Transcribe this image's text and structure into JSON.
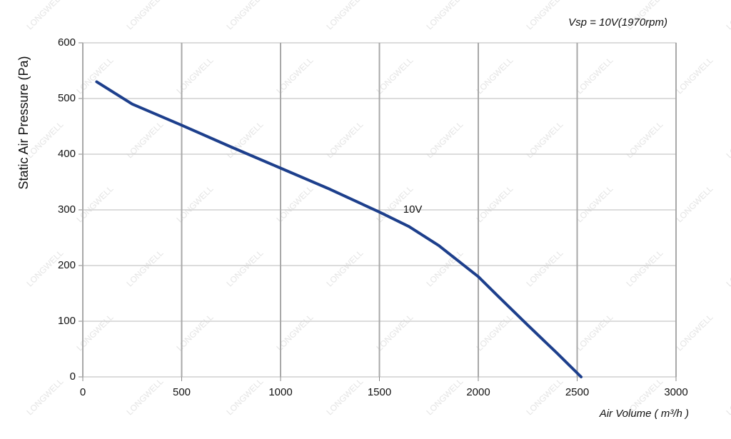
{
  "chart_data": {
    "type": "line",
    "annotation_top": "Vsp = 10V(1970rpm)",
    "watermark": "LONGWELL",
    "xlabel": "Air Volume ( m³/h )",
    "ylabel": "Static Air Pressure  (Pa)",
    "x": [
      70,
      250,
      500,
      750,
      1000,
      1250,
      1500,
      1650,
      1800,
      2000,
      2100,
      2250,
      2400,
      2520
    ],
    "series": [
      {
        "name": "10V",
        "color": "#1d3f8c",
        "values": [
          530,
          490,
          452,
          413,
          375,
          337,
          296,
          270,
          236,
          180,
          145,
          93,
          42,
          0
        ]
      }
    ],
    "xlim": [
      0,
      3000
    ],
    "xticks": [
      0,
      500,
      1000,
      1500,
      2000,
      2500,
      3000
    ],
    "ylim": [
      0,
      600
    ],
    "yticks": [
      0,
      100,
      200,
      300,
      400,
      500,
      600
    ],
    "grid": true
  }
}
